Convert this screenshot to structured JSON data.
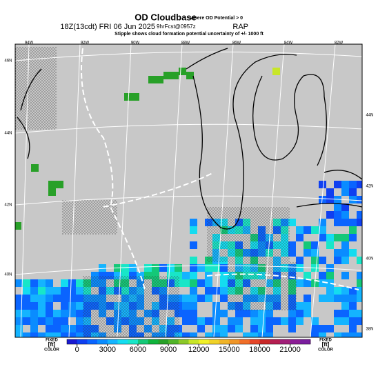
{
  "header": {
    "title": "OD Cloudbase",
    "subtitle": "where OD Potential > 0",
    "time": "18Z(13cdt) FRI 06 Jun 2025",
    "forecast": "9hrFcst@0957z",
    "model": "RAP",
    "note": "Stipple shows cloud formation potential uncertainty of +/- 1000 ft"
  },
  "map": {
    "top_labels": [
      "94W",
      "92W",
      "90W",
      "88W",
      "86W",
      "84W",
      "82W"
    ],
    "left_labels": [
      "46N",
      "44N",
      "42N",
      "40N"
    ],
    "right_labels": [
      "44N",
      "42N",
      "40N",
      "38N"
    ]
  },
  "colorbar": {
    "left": [
      "FIXED",
      "[ft]",
      "COLOR"
    ],
    "right": [
      "FIXED",
      "[ft]",
      "COLOR"
    ],
    "ticks": [
      0,
      3000,
      6000,
      9000,
      12000,
      15000,
      18000,
      21000
    ],
    "range": [
      -1000,
      23000
    ],
    "colors": [
      "#1a1ad0",
      "#0f3ff0",
      "#0a64ff",
      "#0a8cff",
      "#14b4ff",
      "#14dcf0",
      "#18e6c8",
      "#14c878",
      "#10b43c",
      "#28a028",
      "#50b428",
      "#8cc828",
      "#c8e628",
      "#f0f028",
      "#f0d228",
      "#f0b428",
      "#f09628",
      "#f06e28",
      "#e64628",
      "#c82828",
      "#b41e50",
      "#a01e78",
      "#8c1e96",
      "#7a1e9e"
    ]
  }
}
